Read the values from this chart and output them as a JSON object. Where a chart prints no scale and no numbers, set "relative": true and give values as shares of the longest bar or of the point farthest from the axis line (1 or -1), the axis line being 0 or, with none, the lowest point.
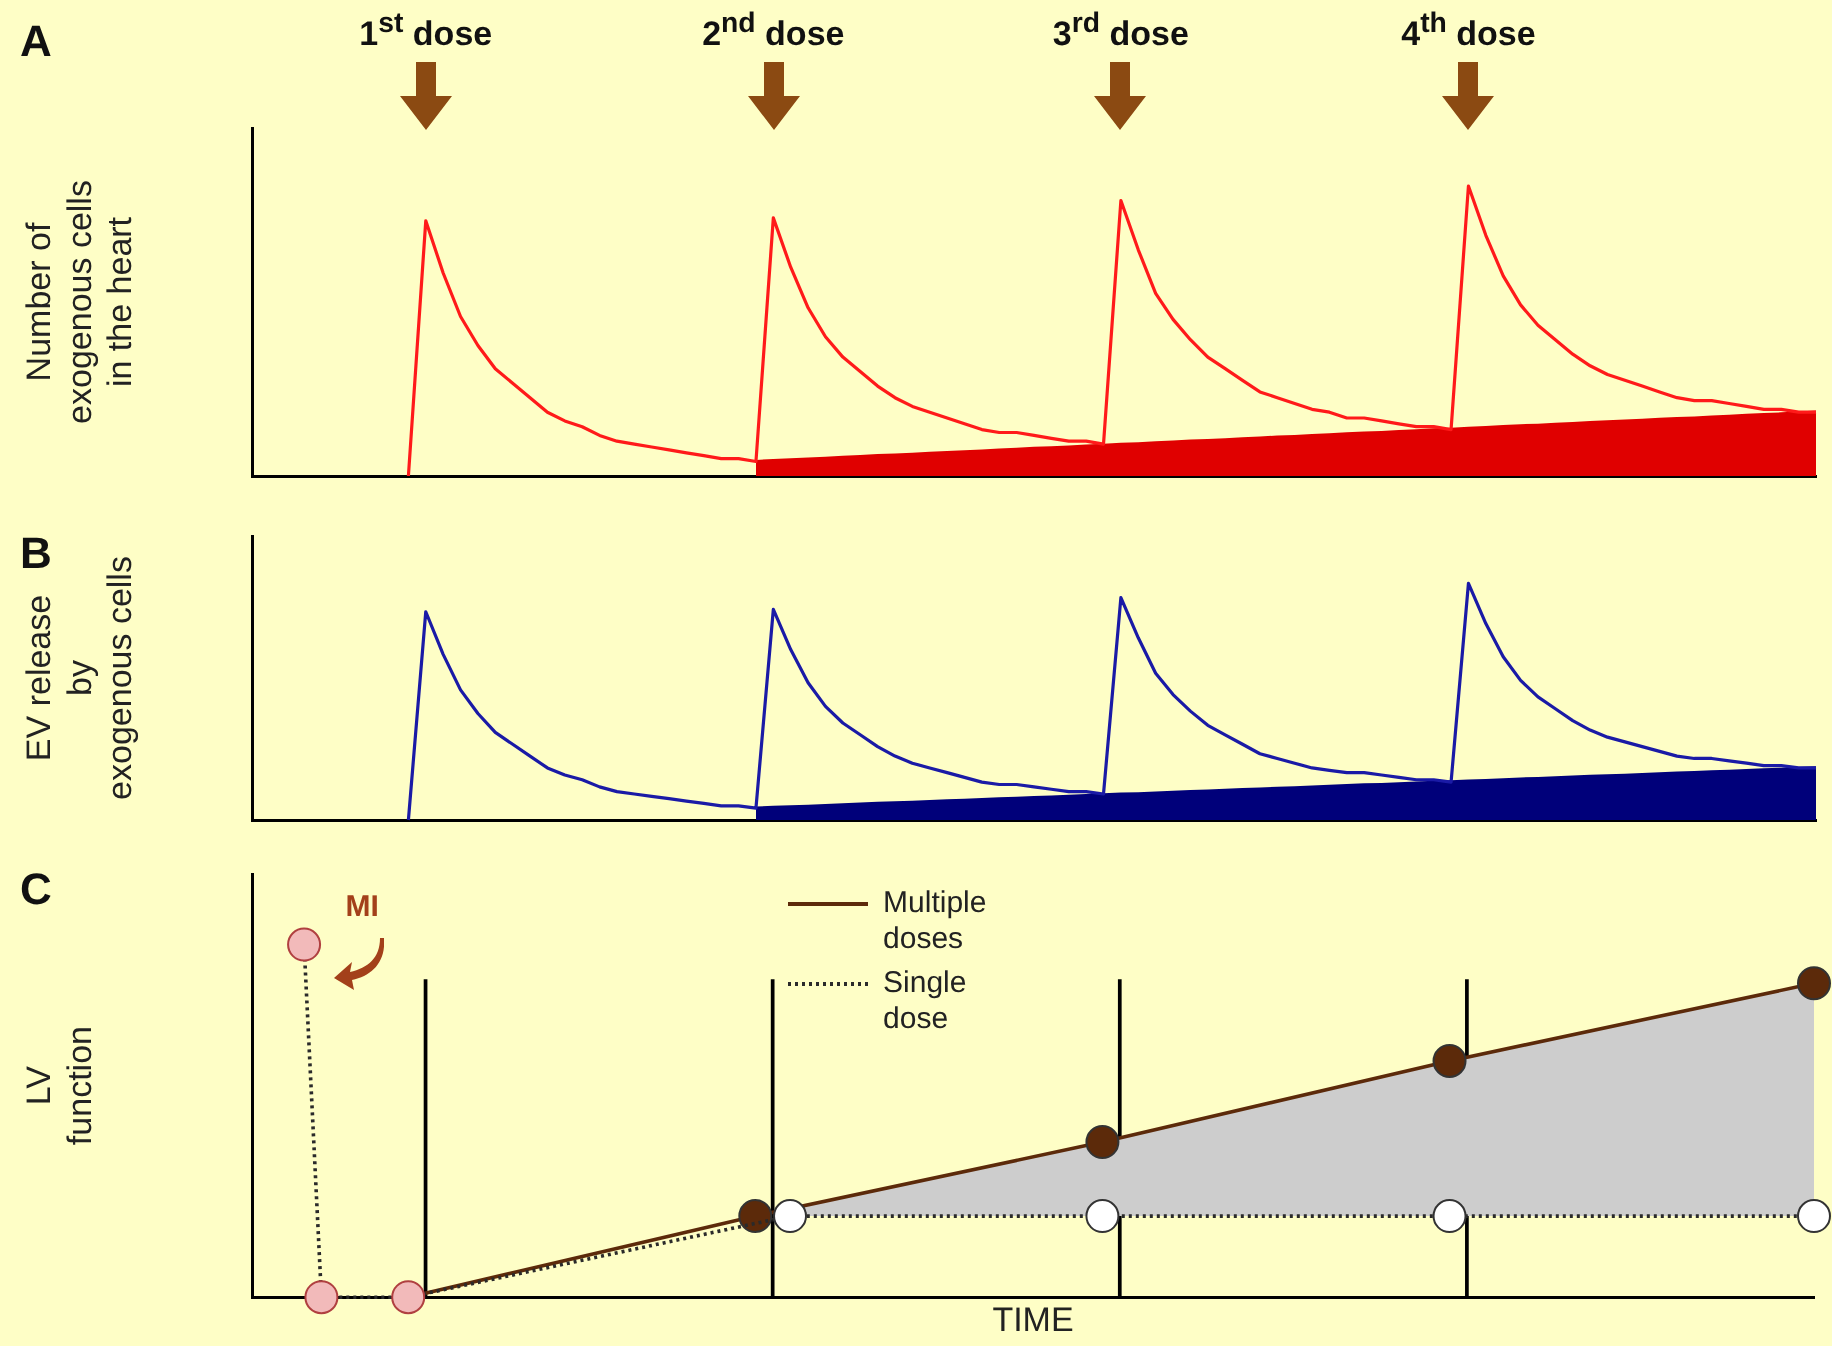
{
  "chart_data": [
    {
      "type": "line",
      "title": "A",
      "ylabel": "Number of\nexogenous cells\nin the heart",
      "relative": true,
      "tick_labels": false,
      "grid": false,
      "annotations": [
        "1$^{st}$ dose",
        "2$^{nd}$ dose",
        "3$^{rd}$ dose",
        "4$^{th}$ dose"
      ],
      "categories": [
        null,
        null,
        null,
        null,
        null,
        null,
        null,
        null,
        null,
        null,
        null,
        null,
        null,
        null,
        null,
        null,
        null,
        null,
        null,
        null,
        null,
        null,
        null,
        null,
        null,
        null,
        null,
        null,
        null,
        null,
        null,
        null,
        null,
        null,
        null,
        null,
        null,
        null,
        null,
        null,
        null,
        null,
        null,
        null,
        null,
        null,
        null,
        null,
        null,
        null,
        null,
        null,
        null,
        null,
        null,
        null,
        null,
        null,
        null,
        null,
        null,
        null,
        null,
        null,
        null,
        null,
        null,
        null,
        null,
        null,
        null,
        null,
        null,
        null,
        null,
        null,
        null,
        null,
        null,
        null,
        null,
        null,
        null,
        null,
        null,
        null,
        null,
        null,
        null,
        null,
        null
      ],
      "series": [
        {
          "type": "area",
          "color": "#e00000",
          "values": [
            null,
            null,
            null,
            null,
            null,
            null,
            null,
            null,
            null,
            null,
            null,
            null,
            null,
            null,
            null,
            null,
            null,
            null,
            null,
            null,
            null,
            null,
            null,
            null,
            null,
            null,
            null,
            null,
            null,
            0.05,
            0.053,
            0.056,
            0.058,
            0.061,
            0.064,
            0.067,
            0.07,
            0.072,
            0.075,
            0.078,
            0.081,
            0.083,
            0.086,
            0.089,
            0.092,
            0.095,
            0.097,
            0.1,
            0.103,
            0.106,
            0.109,
            0.111,
            0.114,
            0.117,
            0.12,
            0.122,
            0.125,
            0.128,
            0.131,
            0.134,
            0.136,
            0.139,
            0.142,
            0.145,
            0.148,
            0.15,
            0.153,
            0.156,
            0.159,
            0.161,
            0.164,
            0.167,
            0.17,
            0.173,
            0.175,
            0.178,
            0.181,
            0.184,
            0.187,
            0.189,
            0.192,
            0.195,
            0.198,
            0.2,
            0.203,
            0.206,
            0.209,
            0.212,
            0.214,
            0.217,
            0.22
          ]
        },
        {
          "type": "line",
          "color": "#ff1a1a",
          "marker": "none",
          "values": [
            null,
            null,
            null,
            null,
            null,
            null,
            null,
            null,
            null,
            0,
            0.88,
            0.7,
            0.55,
            0.45,
            0.37,
            0.32,
            0.27,
            0.22,
            0.19,
            0.17,
            0.14,
            0.12,
            0.11,
            0.1,
            0.09,
            0.08,
            0.07,
            0.06,
            0.06,
            0.05,
            0.89,
            0.72,
            0.58,
            0.48,
            0.41,
            0.36,
            0.31,
            0.27,
            0.24,
            0.22,
            0.2,
            0.18,
            0.16,
            0.15,
            0.15,
            0.14,
            0.13,
            0.12,
            0.12,
            0.11,
            0.95,
            0.78,
            0.63,
            0.54,
            0.47,
            0.41,
            0.37,
            0.33,
            0.29,
            0.27,
            0.25,
            0.23,
            0.22,
            0.2,
            0.2,
            0.19,
            0.18,
            0.17,
            0.17,
            0.16,
            1,
            0.83,
            0.69,
            0.59,
            0.52,
            0.47,
            0.42,
            0.38,
            0.35,
            0.33,
            0.31,
            0.29,
            0.27,
            0.26,
            0.26,
            0.25,
            0.24,
            0.23,
            0.23,
            0.22,
            0.22
          ]
        }
      ]
    },
    {
      "type": "line",
      "title": "B",
      "ylabel": "EV release\nby\nexogenous cells",
      "relative": true,
      "tick_labels": false,
      "grid": false,
      "categories": [
        null,
        null,
        null,
        null,
        null,
        null,
        null,
        null,
        null,
        null,
        null,
        null,
        null,
        null,
        null,
        null,
        null,
        null,
        null,
        null,
        null,
        null,
        null,
        null,
        null,
        null,
        null,
        null,
        null,
        null,
        null,
        null,
        null,
        null,
        null,
        null,
        null,
        null,
        null,
        null,
        null,
        null,
        null,
        null,
        null,
        null,
        null,
        null,
        null,
        null,
        null,
        null,
        null,
        null,
        null,
        null,
        null,
        null,
        null,
        null,
        null,
        null,
        null,
        null,
        null,
        null,
        null,
        null,
        null,
        null,
        null,
        null,
        null,
        null,
        null,
        null,
        null,
        null,
        null,
        null,
        null,
        null,
        null,
        null,
        null,
        null,
        null,
        null,
        null,
        null,
        null
      ],
      "series": [
        {
          "type": "area",
          "color": "#00007a",
          "values": [
            null,
            null,
            null,
            null,
            null,
            null,
            null,
            null,
            null,
            null,
            null,
            null,
            null,
            null,
            null,
            null,
            null,
            null,
            null,
            null,
            null,
            null,
            null,
            null,
            null,
            null,
            null,
            null,
            null,
            0.05,
            0.053,
            0.056,
            0.058,
            0.061,
            0.064,
            0.067,
            0.07,
            0.072,
            0.075,
            0.078,
            0.081,
            0.083,
            0.086,
            0.089,
            0.092,
            0.095,
            0.097,
            0.1,
            0.103,
            0.106,
            0.109,
            0.111,
            0.114,
            0.117,
            0.12,
            0.122,
            0.125,
            0.128,
            0.131,
            0.134,
            0.136,
            0.139,
            0.142,
            0.145,
            0.148,
            0.15,
            0.153,
            0.156,
            0.159,
            0.161,
            0.164,
            0.167,
            0.17,
            0.173,
            0.175,
            0.178,
            0.181,
            0.184,
            0.187,
            0.189,
            0.192,
            0.195,
            0.198,
            0.2,
            0.203,
            0.206,
            0.209,
            0.212,
            0.214,
            0.217,
            0.22
          ]
        },
        {
          "type": "line",
          "color": "#1a1aa6",
          "marker": "none",
          "values": [
            null,
            null,
            null,
            null,
            null,
            null,
            null,
            null,
            null,
            0,
            0.88,
            0.7,
            0.55,
            0.45,
            0.37,
            0.32,
            0.27,
            0.22,
            0.19,
            0.17,
            0.14,
            0.12,
            0.11,
            0.1,
            0.09,
            0.08,
            0.07,
            0.06,
            0.06,
            0.05,
            0.89,
            0.72,
            0.58,
            0.48,
            0.41,
            0.36,
            0.31,
            0.27,
            0.24,
            0.22,
            0.2,
            0.18,
            0.16,
            0.15,
            0.15,
            0.14,
            0.13,
            0.12,
            0.12,
            0.11,
            0.94,
            0.77,
            0.62,
            0.53,
            0.46,
            0.4,
            0.36,
            0.32,
            0.28,
            0.26,
            0.24,
            0.22,
            0.21,
            0.2,
            0.2,
            0.19,
            0.18,
            0.17,
            0.17,
            0.16,
            1,
            0.83,
            0.69,
            0.59,
            0.52,
            0.47,
            0.42,
            0.38,
            0.35,
            0.33,
            0.31,
            0.29,
            0.27,
            0.26,
            0.26,
            0.25,
            0.24,
            0.23,
            0.23,
            0.22,
            0.22
          ]
        }
      ]
    },
    {
      "type": "line",
      "title": "C",
      "xlabel": "TIME",
      "ylabel": "LV\nfunction",
      "relative": true,
      "tick_labels": false,
      "grid": false,
      "legend": "top",
      "annotations": [
        "MI"
      ],
      "categories": [
        null,
        null,
        null,
        null,
        null,
        null,
        null,
        null,
        null,
        null,
        null,
        null,
        null,
        null,
        null,
        null,
        null,
        null,
        null,
        null,
        null,
        null,
        null,
        null,
        null,
        null,
        null,
        null,
        null,
        null,
        null,
        null,
        null,
        null,
        null,
        null,
        null,
        null,
        null,
        null,
        null,
        null,
        null,
        null,
        null,
        null,
        null,
        null,
        null,
        null,
        null,
        null,
        null,
        null,
        null,
        null,
        null,
        null,
        null,
        null,
        null,
        null,
        null,
        null,
        null,
        null,
        null,
        null,
        null,
        null,
        null,
        null,
        null,
        null,
        null,
        null,
        null,
        null,
        null,
        null,
        null,
        null,
        null,
        null,
        null,
        null,
        null,
        null,
        null,
        null,
        null
      ],
      "series": [
        {
          "type": "bar",
          "color": "#000000",
          "values": [
            null,
            null,
            null,
            null,
            null,
            null,
            null,
            null,
            null,
            null,
            0.9,
            null,
            null,
            null,
            null,
            null,
            null,
            null,
            null,
            null,
            null,
            null,
            null,
            null,
            null,
            null,
            null,
            null,
            null,
            null,
            0.9,
            null,
            null,
            null,
            null,
            null,
            null,
            null,
            null,
            null,
            null,
            null,
            null,
            null,
            null,
            null,
            null,
            null,
            null,
            null,
            0.9,
            null,
            null,
            null,
            null,
            null,
            null,
            null,
            null,
            null,
            null,
            null,
            null,
            null,
            null,
            null,
            null,
            null,
            null,
            null,
            0.9,
            null,
            null,
            null,
            null,
            null,
            null,
            null,
            null,
            null,
            null,
            null,
            null,
            null,
            null,
            null,
            null,
            null,
            null,
            null,
            null
          ]
        },
        {
          "name": "Multiple doses",
          "type": "line",
          "color": "#5c2a0a",
          "marker": "circle",
          "values": [
            null,
            null,
            null,
            null,
            null,
            null,
            null,
            null,
            null,
            0,
            null,
            null,
            null,
            null,
            null,
            null,
            null,
            null,
            null,
            null,
            null,
            null,
            null,
            null,
            null,
            null,
            null,
            null,
            null,
            0.23,
            null,
            null,
            null,
            null,
            null,
            null,
            null,
            null,
            null,
            null,
            null,
            null,
            null,
            null,
            null,
            null,
            null,
            null,
            null,
            0.44,
            null,
            null,
            null,
            null,
            null,
            null,
            null,
            null,
            null,
            null,
            null,
            null,
            null,
            null,
            null,
            null,
            null,
            null,
            null,
            0.67,
            null,
            null,
            null,
            null,
            null,
            null,
            null,
            null,
            null,
            null,
            null,
            null,
            null,
            null,
            null,
            null,
            null,
            null,
            null,
            null,
            0.89
          ],
          "upper": [
            null,
            null,
            null,
            null,
            null,
            null,
            null,
            null,
            null,
            null,
            null,
            null,
            null,
            null,
            null,
            null,
            null,
            null,
            null,
            null,
            null,
            null,
            null,
            null,
            null,
            null,
            null,
            null,
            null,
            null,
            null,
            0.25,
            null,
            null,
            null,
            null,
            null,
            null,
            null,
            null,
            null,
            null,
            null,
            null,
            null,
            null,
            null,
            null,
            null,
            0.44,
            null,
            null,
            null,
            null,
            null,
            null,
            null,
            null,
            null,
            null,
            null,
            null,
            null,
            null,
            null,
            null,
            null,
            null,
            null,
            0.67,
            null,
            null,
            null,
            null,
            null,
            null,
            null,
            null,
            null,
            null,
            null,
            null,
            null,
            null,
            null,
            null,
            null,
            null,
            null,
            null,
            0.89
          ],
          "lower": [
            null,
            null,
            null,
            null,
            null,
            null,
            null,
            null,
            null,
            null,
            null,
            null,
            null,
            null,
            null,
            null,
            null,
            null,
            null,
            null,
            null,
            null,
            null,
            null,
            null,
            null,
            null,
            null,
            null,
            null,
            null,
            0.23,
            null,
            null,
            null,
            null,
            null,
            null,
            null,
            null,
            null,
            null,
            null,
            null,
            null,
            null,
            null,
            null,
            null,
            0.23,
            null,
            null,
            null,
            null,
            null,
            null,
            null,
            null,
            null,
            null,
            null,
            null,
            null,
            null,
            null,
            null,
            null,
            null,
            null,
            0.23,
            null,
            null,
            null,
            null,
            null,
            null,
            null,
            null,
            null,
            null,
            null,
            null,
            null,
            null,
            null,
            null,
            null,
            null,
            null,
            null,
            0.23
          ]
        },
        {
          "name": "Single dose",
          "type": "line",
          "color": "#2a2a2a",
          "line_style": "dotted",
          "marker": "circle",
          "values": [
            null,
            null,
            null,
            1,
            0,
            null,
            null,
            null,
            null,
            0,
            null,
            null,
            null,
            null,
            null,
            null,
            null,
            null,
            null,
            null,
            null,
            null,
            null,
            null,
            null,
            null,
            null,
            null,
            null,
            null,
            null,
            0.23,
            null,
            null,
            null,
            null,
            null,
            null,
            null,
            null,
            null,
            null,
            null,
            null,
            null,
            null,
            null,
            null,
            null,
            0.23,
            null,
            null,
            null,
            null,
            null,
            null,
            null,
            null,
            null,
            null,
            null,
            null,
            null,
            null,
            null,
            null,
            null,
            null,
            null,
            0.23,
            null,
            null,
            null,
            null,
            null,
            null,
            null,
            null,
            null,
            null,
            null,
            null,
            null,
            null,
            null,
            null,
            null,
            null,
            null,
            null,
            0.23
          ]
        },
        {
          "type": "scatter",
          "color": "#f2baba",
          "values": [
            null,
            null,
            null,
            1,
            0,
            null,
            null,
            null,
            null,
            0,
            null,
            null,
            null,
            null,
            null,
            null,
            null,
            null,
            null,
            null,
            null,
            null,
            null,
            null,
            null,
            null,
            null,
            null,
            null,
            null,
            null,
            null,
            null,
            null,
            null,
            null,
            null,
            null,
            null,
            null,
            null,
            null,
            null,
            null,
            null,
            null,
            null,
            null,
            null,
            null,
            null,
            null,
            null,
            null,
            null,
            null,
            null,
            null,
            null,
            null,
            null,
            null,
            null,
            null,
            null,
            null,
            null,
            null,
            null,
            null,
            null,
            null,
            null,
            null,
            null,
            null,
            null,
            null,
            null,
            null,
            null,
            null,
            null,
            null,
            null,
            null,
            null,
            null,
            null,
            null,
            null
          ]
        }
      ]
    }
  ]
}
